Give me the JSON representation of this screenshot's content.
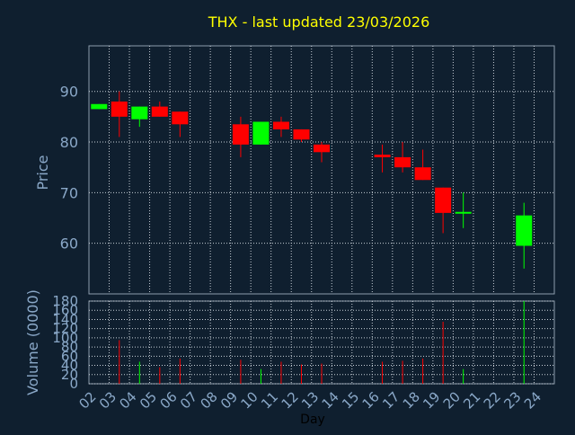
{
  "chart_data": {
    "type": "candlestick",
    "title": "THX - last updated 23/03/2026",
    "xlabel": "Day",
    "x_ticks": [
      "02",
      "03",
      "04",
      "05",
      "06",
      "07",
      "08",
      "09",
      "10",
      "11",
      "12",
      "13",
      "14",
      "15",
      "16",
      "17",
      "18",
      "19",
      "20",
      "21",
      "22",
      "23",
      "24"
    ],
    "price_panel": {
      "ylabel": "Price",
      "ylim": [
        50,
        99
      ],
      "yticks": [
        60,
        70,
        80,
        90
      ],
      "grid": true,
      "candles": [
        {
          "day": "02",
          "open": 86.5,
          "high": 87.5,
          "low": 86.5,
          "close": 87.5
        },
        {
          "day": "03",
          "open": 88.0,
          "high": 90.0,
          "low": 81.0,
          "close": 85.0
        },
        {
          "day": "04",
          "open": 84.5,
          "high": 87.0,
          "low": 83.0,
          "close": 87.0
        },
        {
          "day": "05",
          "open": 87.0,
          "high": 88.0,
          "low": 85.0,
          "close": 85.0
        },
        {
          "day": "06",
          "open": 86.0,
          "high": 86.0,
          "low": 81.0,
          "close": 83.5
        },
        {
          "day": "09",
          "open": 83.5,
          "high": 85.0,
          "low": 77.0,
          "close": 79.5
        },
        {
          "day": "10",
          "open": 79.5,
          "high": 84.0,
          "low": 79.5,
          "close": 84.0
        },
        {
          "day": "11",
          "open": 84.0,
          "high": 85.0,
          "low": 81.0,
          "close": 82.5
        },
        {
          "day": "12",
          "open": 82.5,
          "high": 82.5,
          "low": 80.0,
          "close": 80.5
        },
        {
          "day": "13",
          "open": 79.5,
          "high": 80.0,
          "low": 76.0,
          "close": 78.0
        },
        {
          "day": "16",
          "open": 77.5,
          "high": 79.5,
          "low": 74.0,
          "close": 77.0
        },
        {
          "day": "17",
          "open": 77.0,
          "high": 80.0,
          "low": 74.0,
          "close": 75.0
        },
        {
          "day": "18",
          "open": 75.0,
          "high": 78.5,
          "low": 72.5,
          "close": 72.5
        },
        {
          "day": "19",
          "open": 71.0,
          "high": 71.0,
          "low": 62.0,
          "close": 66.0
        },
        {
          "day": "20",
          "open": 66.0,
          "high": 70.0,
          "low": 63.0,
          "close": 66.2
        },
        {
          "day": "23",
          "open": 59.5,
          "high": 68.0,
          "low": 55.0,
          "close": 65.5
        }
      ]
    },
    "volume_panel": {
      "ylabel": "Volume (0000)",
      "ylim": [
        0,
        180
      ],
      "yticks": [
        0,
        20,
        40,
        60,
        80,
        100,
        120,
        140,
        160,
        180
      ],
      "grid": true,
      "bars": [
        {
          "day": "02",
          "value": 0
        },
        {
          "day": "03",
          "value": 95
        },
        {
          "day": "04",
          "value": 48
        },
        {
          "day": "05",
          "value": 36
        },
        {
          "day": "06",
          "value": 55
        },
        {
          "day": "09",
          "value": 52
        },
        {
          "day": "10",
          "value": 32
        },
        {
          "day": "11",
          "value": 48
        },
        {
          "day": "12",
          "value": 42
        },
        {
          "day": "13",
          "value": 44
        },
        {
          "day": "16",
          "value": 48
        },
        {
          "day": "17",
          "value": 50
        },
        {
          "day": "18",
          "value": 55
        },
        {
          "day": "19",
          "value": 135
        },
        {
          "day": "20",
          "value": 32
        },
        {
          "day": "23",
          "value": 180
        }
      ]
    },
    "colors": {
      "background": "#0f1f2f",
      "axis_text": "#8aa8c8",
      "grid": "#c8d0d8",
      "title": "#ffff00",
      "up": "#00ff00",
      "down": "#ff0000",
      "axis_label": "#8aa8c8",
      "frame": "#8c9cac"
    }
  }
}
